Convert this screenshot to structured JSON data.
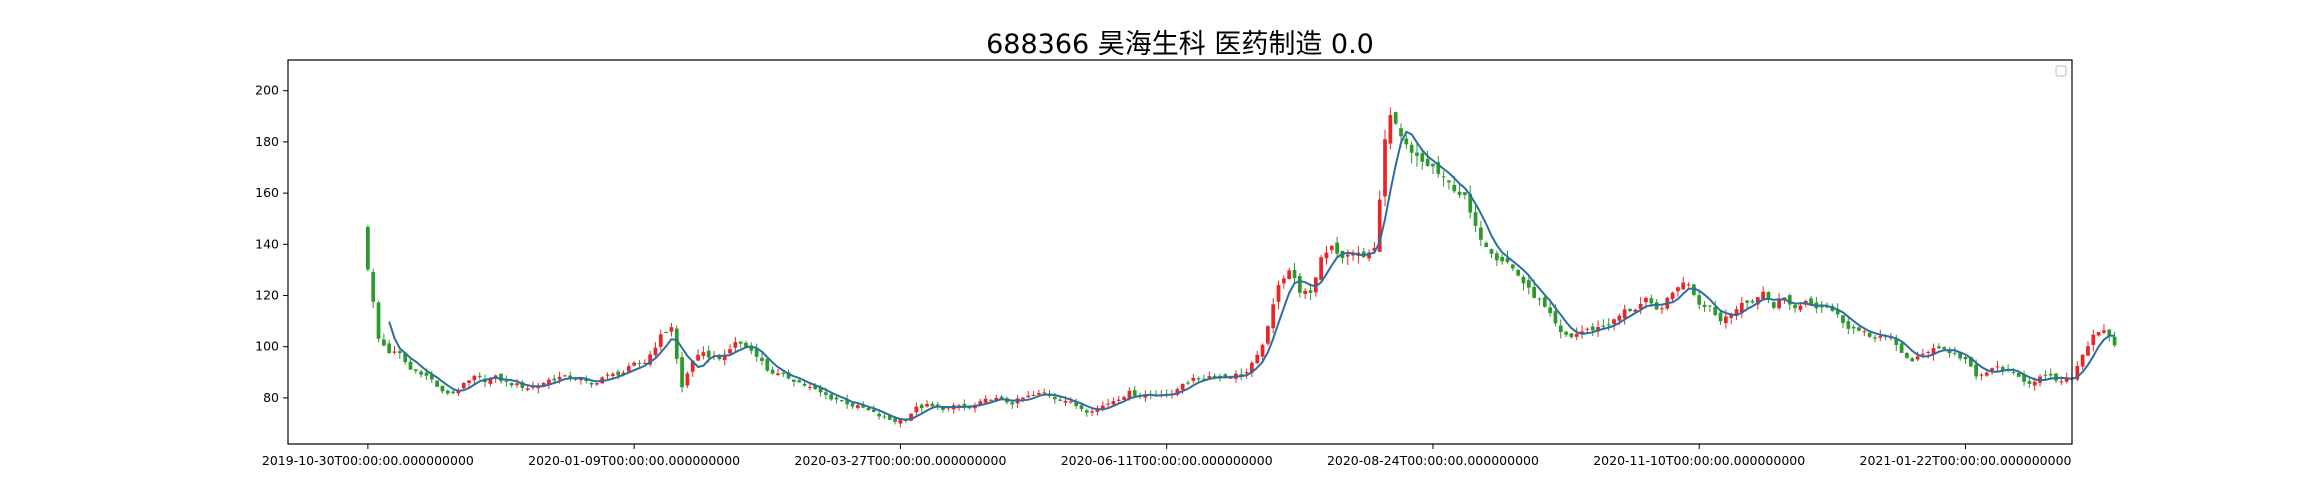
{
  "chart_data": {
    "type": "candlestick",
    "title": "688366 昊海生科 医药制造 0.0",
    "xlabel": "",
    "ylabel": "",
    "ylim": [
      62,
      212
    ],
    "y_ticks": [
      80,
      100,
      120,
      140,
      160,
      180,
      200
    ],
    "x_tick_labels": [
      "2019-10-30T00:00:00.000000000",
      "2020-01-09T00:00:00.000000000",
      "2020-03-27T00:00:00.000000000",
      "2020-06-11T00:00:00.000000000",
      "2020-08-24T00:00:00.000000000",
      "2020-11-10T00:00:00.000000000",
      "2021-01-22T00:00:00.000000000"
    ],
    "x_tick_index": [
      0,
      50,
      100,
      150,
      200,
      250,
      300
    ],
    "x_range": [
      -15,
      320
    ],
    "legend": "top-right (empty)",
    "grid": false,
    "colors": {
      "up": "#e8262a",
      "down": "#2a9a2a",
      "ma": "#2e6e9e"
    },
    "ma_window": 5,
    "close_waypoints": [
      [
        0,
        131
      ],
      [
        2,
        103
      ],
      [
        4,
        98
      ],
      [
        6,
        97
      ],
      [
        8,
        91
      ],
      [
        10,
        90
      ],
      [
        12,
        87
      ],
      [
        14,
        82
      ],
      [
        16,
        82
      ],
      [
        18,
        85
      ],
      [
        20,
        88
      ],
      [
        22,
        87
      ],
      [
        24,
        88
      ],
      [
        26,
        86
      ],
      [
        28,
        85
      ],
      [
        30,
        84
      ],
      [
        32,
        85
      ],
      [
        34,
        87
      ],
      [
        36,
        88
      ],
      [
        38,
        88
      ],
      [
        40,
        87
      ],
      [
        42,
        85
      ],
      [
        44,
        88
      ],
      [
        46,
        89
      ],
      [
        48,
        90
      ],
      [
        50,
        93
      ],
      [
        52,
        94
      ],
      [
        53,
        97
      ],
      [
        55,
        104
      ],
      [
        57,
        108
      ],
      [
        58,
        95
      ],
      [
        59,
        84
      ],
      [
        61,
        95
      ],
      [
        63,
        97
      ],
      [
        65,
        96
      ],
      [
        67,
        96
      ],
      [
        69,
        102
      ],
      [
        71,
        100
      ],
      [
        73,
        97
      ],
      [
        75,
        91
      ],
      [
        77,
        89
      ],
      [
        79,
        88
      ],
      [
        81,
        86
      ],
      [
        83,
        84
      ],
      [
        85,
        82
      ],
      [
        87,
        80
      ],
      [
        89,
        79
      ],
      [
        91,
        77
      ],
      [
        93,
        76
      ],
      [
        95,
        74
      ],
      [
        97,
        72
      ],
      [
        99,
        71
      ],
      [
        101,
        72
      ],
      [
        103,
        76
      ],
      [
        105,
        77
      ],
      [
        107,
        76
      ],
      [
        109,
        76
      ],
      [
        111,
        77
      ],
      [
        113,
        76
      ],
      [
        115,
        78
      ],
      [
        117,
        80
      ],
      [
        119,
        79
      ],
      [
        121,
        78
      ],
      [
        123,
        80
      ],
      [
        125,
        81
      ],
      [
        127,
        82
      ],
      [
        129,
        80
      ],
      [
        131,
        79
      ],
      [
        133,
        77
      ],
      [
        135,
        75
      ],
      [
        137,
        76
      ],
      [
        139,
        78
      ],
      [
        141,
        80
      ],
      [
        143,
        82
      ],
      [
        145,
        81
      ],
      [
        147,
        81
      ],
      [
        149,
        82
      ],
      [
        151,
        81
      ],
      [
        153,
        86
      ],
      [
        155,
        87
      ],
      [
        157,
        88
      ],
      [
        159,
        89
      ],
      [
        161,
        88
      ],
      [
        163,
        89
      ],
      [
        165,
        90
      ],
      [
        167,
        96
      ],
      [
        169,
        107
      ],
      [
        171,
        125
      ],
      [
        173,
        130
      ],
      [
        175,
        122
      ],
      [
        177,
        120
      ],
      [
        179,
        135
      ],
      [
        181,
        140
      ],
      [
        183,
        134
      ],
      [
        185,
        137
      ],
      [
        187,
        135
      ],
      [
        189,
        138
      ],
      [
        191,
        180
      ],
      [
        192,
        190
      ],
      [
        194,
        181
      ],
      [
        196,
        175
      ],
      [
        198,
        172
      ],
      [
        200,
        170
      ],
      [
        202,
        165
      ],
      [
        204,
        162
      ],
      [
        206,
        158
      ],
      [
        208,
        146
      ],
      [
        210,
        140
      ],
      [
        212,
        135
      ],
      [
        214,
        133
      ],
      [
        216,
        128
      ],
      [
        218,
        122
      ],
      [
        220,
        118
      ],
      [
        222,
        112
      ],
      [
        224,
        105
      ],
      [
        226,
        104
      ],
      [
        228,
        106
      ],
      [
        230,
        107
      ],
      [
        232,
        108
      ],
      [
        234,
        110
      ],
      [
        236,
        114
      ],
      [
        238,
        115
      ],
      [
        240,
        118
      ],
      [
        242,
        114
      ],
      [
        244,
        118
      ],
      [
        246,
        124
      ],
      [
        248,
        125
      ],
      [
        250,
        117
      ],
      [
        252,
        116
      ],
      [
        254,
        110
      ],
      [
        256,
        114
      ],
      [
        258,
        116
      ],
      [
        260,
        118
      ],
      [
        262,
        121
      ],
      [
        264,
        116
      ],
      [
        266,
        119
      ],
      [
        268,
        115
      ],
      [
        270,
        118
      ],
      [
        272,
        116
      ],
      [
        274,
        116
      ],
      [
        276,
        112
      ],
      [
        278,
        108
      ],
      [
        280,
        106
      ],
      [
        282,
        104
      ],
      [
        284,
        104
      ],
      [
        286,
        103
      ],
      [
        288,
        98
      ],
      [
        290,
        94
      ],
      [
        292,
        97
      ],
      [
        294,
        100
      ],
      [
        296,
        99
      ],
      [
        298,
        97
      ],
      [
        300,
        95
      ],
      [
        302,
        88
      ],
      [
        304,
        90
      ],
      [
        306,
        92
      ],
      [
        308,
        90
      ],
      [
        310,
        88
      ],
      [
        312,
        86
      ],
      [
        314,
        88
      ],
      [
        316,
        88
      ],
      [
        318,
        86
      ],
      [
        320,
        88
      ],
      [
        322,
        97
      ],
      [
        324,
        105
      ],
      [
        326,
        107
      ],
      [
        328,
        100
      ]
    ]
  }
}
